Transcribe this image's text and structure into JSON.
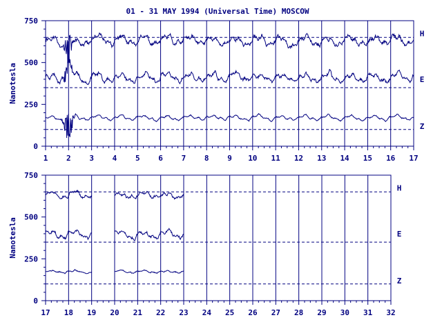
{
  "title": "01 - 31 MAY 1994 (Universal Time) MOSCOW",
  "colors": {
    "ink": "#000080",
    "background": "#ffffff"
  },
  "chart_data": [
    {
      "type": "line",
      "ylabel": "Nanotesla",
      "xlim": [
        1,
        17
      ],
      "ylim": [
        0,
        750
      ],
      "y_ticks": [
        "0",
        "250",
        "500",
        "750"
      ],
      "x_ticks": [
        "1",
        "2",
        "3",
        "4",
        "5",
        "6",
        "7",
        "8",
        "9",
        "10",
        "11",
        "12",
        "13",
        "14",
        "15",
        "16",
        "17"
      ],
      "grid": "vertical lines at each day",
      "reference_lines": [
        650,
        350,
        100
      ],
      "data_start": 1,
      "data_end": 17,
      "series": [
        {
          "name": "H",
          "base": 630,
          "amplitude": 25,
          "noise": 18,
          "seed": 11
        },
        {
          "name": "E",
          "base": 410,
          "amplitude": 25,
          "noise": 15,
          "seed": 23
        },
        {
          "name": "Z",
          "base": 170,
          "amplitude": 15,
          "noise": 6,
          "seed": 37
        }
      ],
      "disturbance_day": 2
    },
    {
      "type": "line",
      "ylabel": "Nanotesla",
      "xlim": [
        17,
        32
      ],
      "ylim": [
        0,
        750
      ],
      "y_ticks": [
        "0",
        "250",
        "500",
        "750"
      ],
      "x_ticks": [
        "17",
        "18",
        "19",
        "20",
        "21",
        "22",
        "23",
        "24",
        "25",
        "26",
        "27",
        "28",
        "29",
        "30",
        "31",
        "32"
      ],
      "grid": "vertical lines at each day",
      "reference_lines": [
        650,
        350,
        100
      ],
      "data_segments": [
        [
          17,
          19
        ],
        [
          20,
          23
        ]
      ],
      "series": [
        {
          "name": "H",
          "base": 630,
          "amplitude": 18,
          "noise": 12,
          "seed": 51
        },
        {
          "name": "E",
          "base": 400,
          "amplitude": 22,
          "noise": 12,
          "seed": 63
        },
        {
          "name": "Z",
          "base": 172,
          "amplitude": 8,
          "noise": 5,
          "seed": 77
        }
      ]
    }
  ]
}
